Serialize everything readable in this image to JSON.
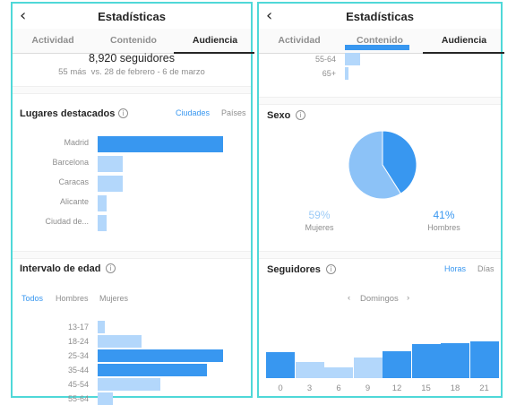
{
  "colors": {
    "bar_dark": "#3897f0",
    "bar_light": "#b3d7fb",
    "accent": "#3897f0",
    "panel_border": "#4fd8d8"
  },
  "left": {
    "back_icon": "back-chevron-icon",
    "title": "Estadísticas",
    "tabs": [
      {
        "label": "Actividad",
        "active": false
      },
      {
        "label": "Contenido",
        "active": false
      },
      {
        "label": "Audiencia",
        "active": true
      }
    ],
    "followers": {
      "count": "8,920 seguidores",
      "change": "55 más  vs. 28 de febrero - 6 de marzo"
    },
    "places": {
      "title": "Lugares destacados",
      "toggles": [
        "Ciudades",
        "Países"
      ],
      "active_toggle": 0,
      "items": [
        {
          "label": "Madrid",
          "value": 100,
          "highlight": true
        },
        {
          "label": "Barcelona",
          "value": 20,
          "highlight": false
        },
        {
          "label": "Caracas",
          "value": 20,
          "highlight": false
        },
        {
          "label": "Alicante",
          "value": 7,
          "highlight": false
        },
        {
          "label": "Ciudad de...",
          "value": 7,
          "highlight": false
        }
      ]
    },
    "age": {
      "title": "Intervalo de edad",
      "filters": [
        "Todos",
        "Hombres",
        "Mujeres"
      ],
      "active_filter": 0,
      "items": [
        {
          "label": "13-17",
          "value": 6,
          "highlight": false
        },
        {
          "label": "18-24",
          "value": 35,
          "highlight": false
        },
        {
          "label": "25-34",
          "value": 100,
          "highlight": true
        },
        {
          "label": "35-44",
          "value": 87,
          "highlight": true
        },
        {
          "label": "45-54",
          "value": 50,
          "highlight": false
        },
        {
          "label": "55-64",
          "value": 12,
          "highlight": false
        }
      ]
    }
  },
  "right": {
    "back_icon": "back-chevron-icon",
    "title": "Estadísticas",
    "tabs": [
      {
        "label": "Actividad",
        "active": false
      },
      {
        "label": "Contenido",
        "active": false
      },
      {
        "label": "Audiencia",
        "active": true
      }
    ],
    "age_tail": [
      {
        "label": "55-64",
        "value": 12
      },
      {
        "label": "65+",
        "value": 3
      }
    ],
    "gender": {
      "title": "Sexo",
      "women": {
        "pct": "59%",
        "label": "Mujeres",
        "value": 59
      },
      "men": {
        "pct": "41%",
        "label": "Hombres",
        "value": 41
      }
    },
    "followers_time": {
      "title": "Seguidores",
      "toggles": [
        "Horas",
        "Días"
      ],
      "active_toggle": 0,
      "day": "Domingos",
      "x_labels": [
        "0",
        "3",
        "6",
        "9",
        "12",
        "15",
        "18",
        "21"
      ],
      "values": [
        60,
        38,
        24,
        47,
        63,
        79,
        81,
        86
      ],
      "highlight": [
        true,
        false,
        false,
        false,
        true,
        true,
        true,
        true
      ]
    }
  }
}
